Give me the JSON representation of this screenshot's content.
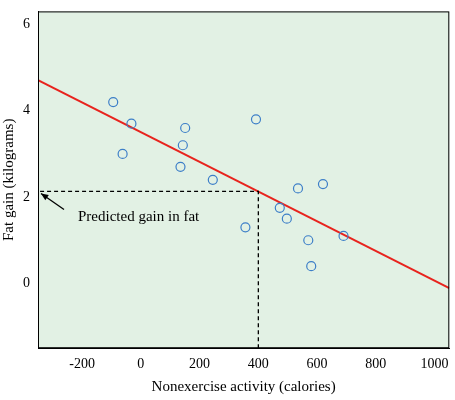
{
  "chart_data": {
    "type": "scatter",
    "x_label": "Nonexercise activity (calories)",
    "y_label": "Fat gain (kilograms)",
    "xlim": [
      -350,
      1050
    ],
    "ylim": [
      -1.5,
      6.3
    ],
    "xticks": [
      -200,
      0,
      200,
      400,
      600,
      800,
      1000
    ],
    "yticks": [
      0,
      2,
      4,
      6
    ],
    "grid": false,
    "series": [
      {
        "type": "scatter",
        "marker": "circle-open",
        "color": "#3d7fc8",
        "x": [
          -94,
          -32,
          -62,
          151,
          143,
          135,
          245,
          392,
          356,
          535,
          620,
          473,
          497,
          570,
          580,
          690
        ],
        "values": [
          4.2,
          3.7,
          3.0,
          3.6,
          3.2,
          2.7,
          2.4,
          3.8,
          1.3,
          2.2,
          2.3,
          1.75,
          1.5,
          1.0,
          0.4,
          1.1
        ]
      },
      {
        "type": "line",
        "line_style": "solid",
        "color": "#e8231d",
        "x": [
          -350,
          1050
        ],
        "values": [
          4.71,
          -0.11
        ]
      }
    ],
    "annotations": [
      {
        "text": "Predicted gain in fat",
        "x": 400,
        "y": 2.13,
        "line_style": "dashed",
        "color": "#000000"
      }
    ]
  }
}
